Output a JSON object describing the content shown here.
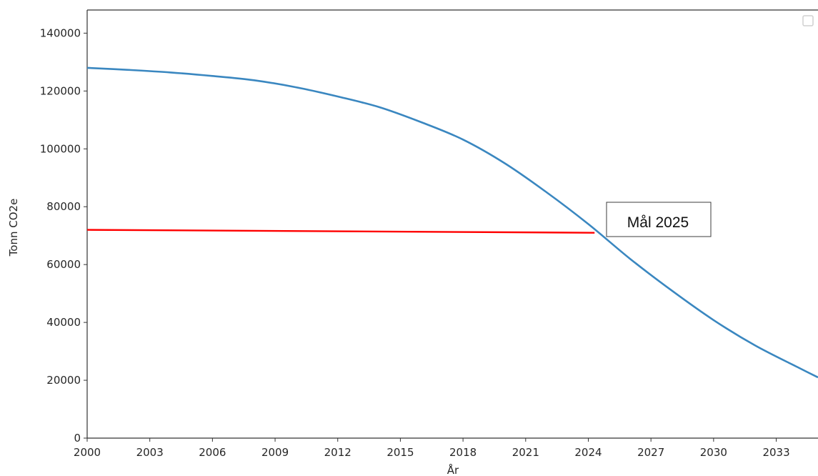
{
  "chart_data": {
    "type": "line",
    "xlabel": "År",
    "ylabel": "Tonn CO2e",
    "xlim": [
      2000,
      2035
    ],
    "ylim": [
      0,
      148000
    ],
    "x_ticks": [
      2000,
      2003,
      2006,
      2009,
      2012,
      2015,
      2018,
      2021,
      2024,
      2027,
      2030,
      2033
    ],
    "y_ticks": [
      0,
      20000,
      40000,
      60000,
      80000,
      100000,
      120000,
      140000
    ],
    "grid": false,
    "legend": "top-right (empty)",
    "series": [
      {
        "color": "#3a87c0",
        "x": [
          2000,
          2002,
          2004,
          2006,
          2008,
          2010,
          2012,
          2014,
          2016,
          2018,
          2020,
          2022,
          2024,
          2026,
          2028,
          2030,
          2032,
          2034,
          2035
        ],
        "y": [
          128000,
          127300,
          126400,
          125200,
          123700,
          121300,
          118100,
          114400,
          109200,
          103200,
          95000,
          85000,
          74000,
          62000,
          51000,
          40800,
          32000,
          24600,
          21000
        ]
      }
    ],
    "target_line": {
      "color": "#ff0000",
      "x": [
        2000,
        2024.3
      ],
      "y": [
        72000,
        71000
      ]
    },
    "annotation": {
      "text": "Mål 2025"
    }
  }
}
